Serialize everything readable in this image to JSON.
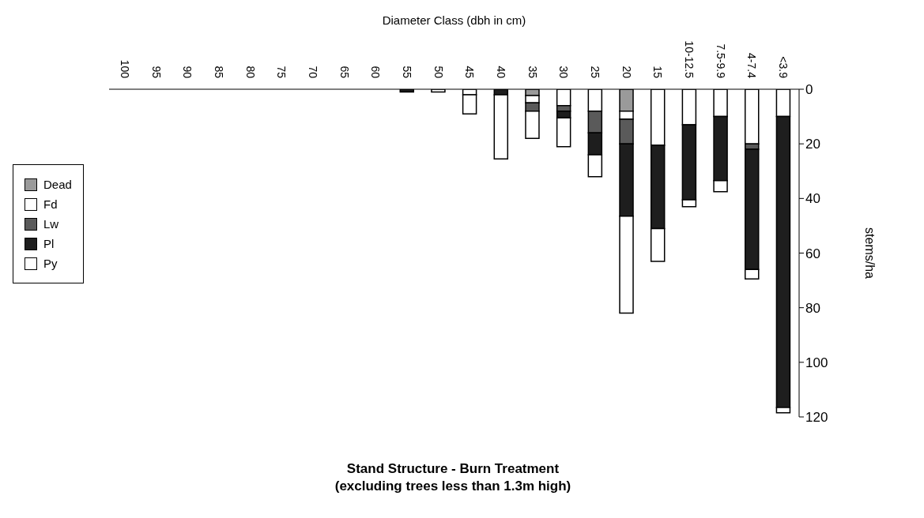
{
  "chart_data": {
    "type": "bar",
    "stacked": true,
    "title": "Stand Structure - Burn Treatment",
    "subtitle": "(excluding trees less than 1.3m high)",
    "xlabel": "Diameter Class (dbh in cm)",
    "ylabel": "stems/ha",
    "categories": [
      "100",
      "95",
      "90",
      "85",
      "80",
      "75",
      "70",
      "65",
      "60",
      "55",
      "50",
      "45",
      "40",
      "35",
      "30",
      "25",
      "20",
      "15",
      "10-12.5",
      "7.5-9.9",
      "4-7.4",
      "<3.9"
    ],
    "series": [
      {
        "name": "Dead",
        "color": "#9a9a9a",
        "values": [
          0,
          0,
          0,
          0,
          0,
          0,
          0,
          0,
          0,
          0,
          0,
          0,
          0,
          2.3,
          0,
          0,
          8,
          0,
          0,
          0,
          0,
          0
        ]
      },
      {
        "name": "Fd",
        "color": "#ffffff",
        "values": [
          0,
          0,
          0,
          0,
          0,
          0,
          0,
          0,
          0,
          0,
          0,
          2,
          0,
          2.7,
          6,
          8,
          3,
          20.5,
          13,
          10,
          20,
          10
        ]
      },
      {
        "name": "Lw",
        "color": "#5a5a5a",
        "values": [
          0,
          0,
          0,
          0,
          0,
          0,
          0,
          0,
          0,
          null,
          0,
          0,
          null,
          3,
          2,
          8,
          9,
          0,
          0,
          0,
          2,
          0
        ]
      },
      {
        "name": "Pl",
        "color": "#1e1e1e",
        "values": [
          0,
          0,
          0,
          0,
          0,
          0,
          0,
          0,
          0,
          1,
          0,
          0,
          2,
          0,
          2.5,
          8,
          26.5,
          30.5,
          27.5,
          23.5,
          44,
          106.5
        ]
      },
      {
        "name": "Py",
        "color": "#ffffff",
        "values": [
          0,
          0,
          0,
          0,
          0,
          0,
          0,
          0,
          0,
          0,
          1,
          7,
          23.5,
          10,
          10.5,
          8,
          35.5,
          12,
          2.5,
          4,
          3.5,
          2
        ]
      }
    ],
    "ylim": [
      120,
      0
    ],
    "yticks": [
      0,
      20,
      40,
      60,
      80,
      100,
      120
    ],
    "grid": false,
    "legend": "left"
  }
}
